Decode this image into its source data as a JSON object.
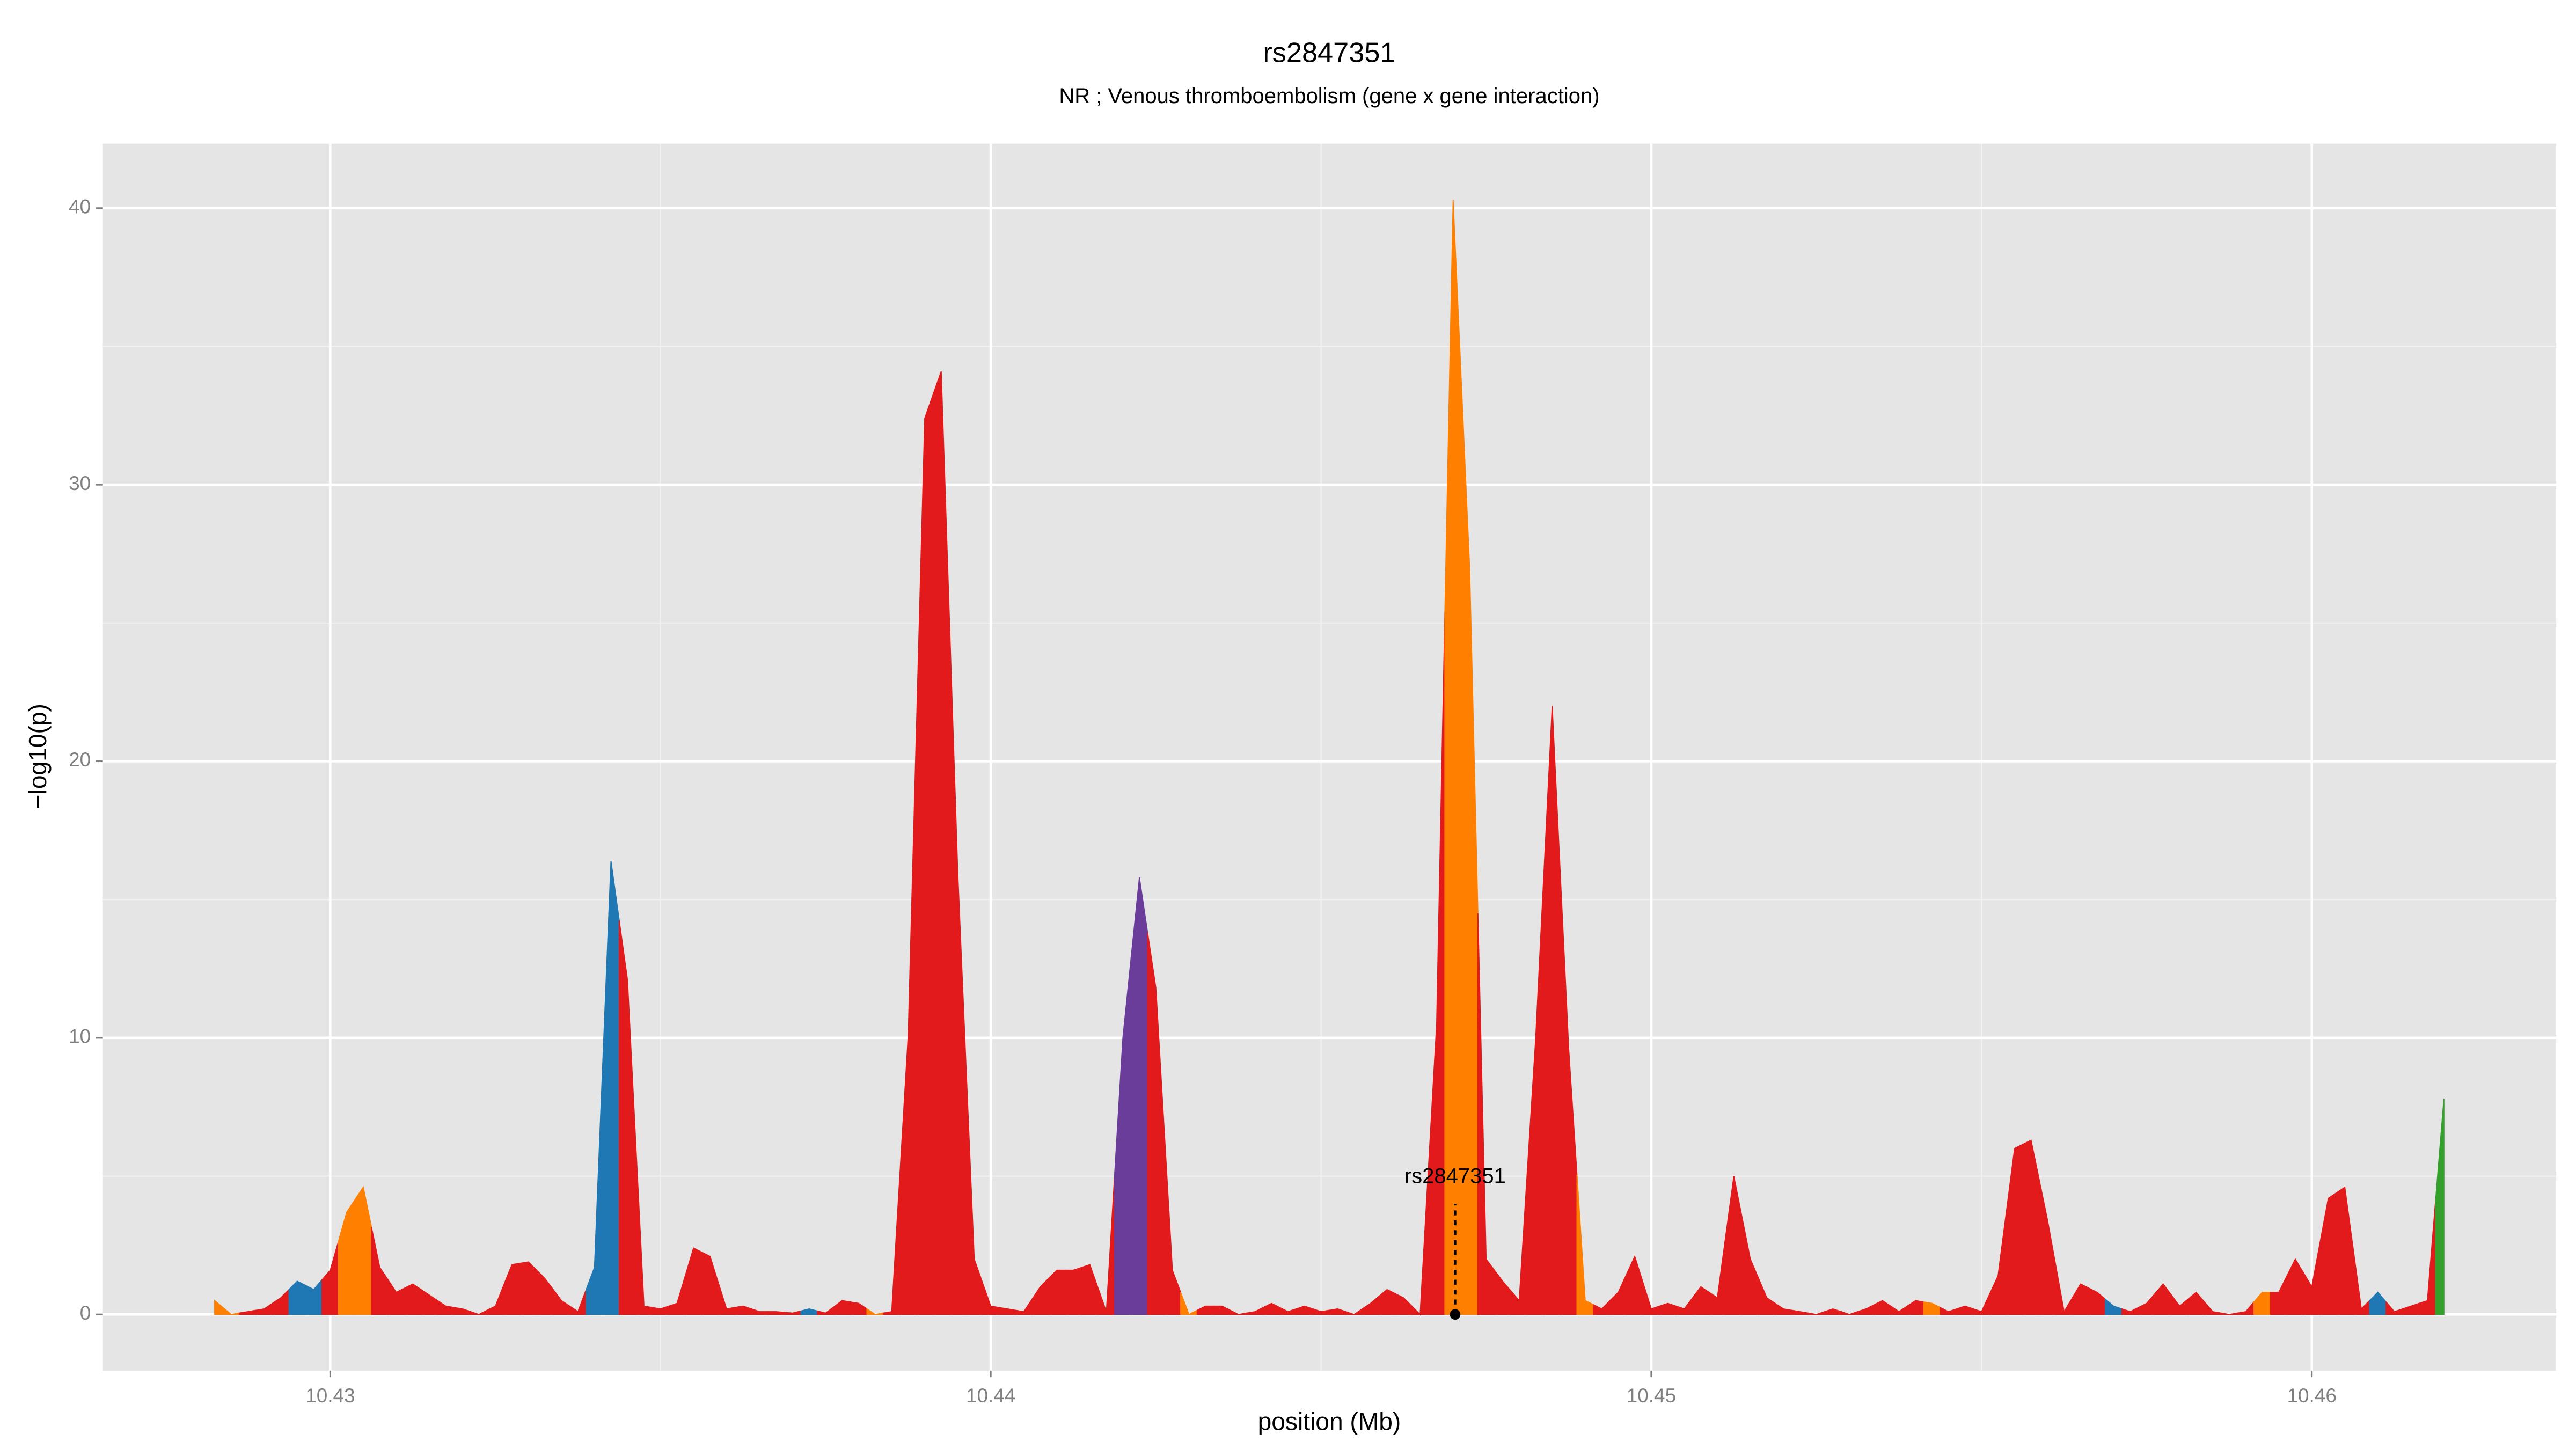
{
  "chart_data": {
    "type": "area",
    "title": "rs2847351",
    "subtitle": "NR ; Venous thromboembolism (gene x gene interaction)",
    "x_label": "position (Mb)",
    "y_label": "−log10(p)",
    "xlim": [
      10.42655,
      10.4637
    ],
    "ylim": [
      -2.03,
      42.33
    ],
    "xticks": [
      10.43,
      10.44,
      10.45,
      10.46
    ],
    "yticks": [
      0,
      10,
      20,
      30,
      40
    ],
    "grid": true,
    "x": [
      10.42825,
      10.4285,
      10.42875,
      10.429,
      10.42925,
      10.4295,
      10.42975,
      10.43,
      10.43025,
      10.4305,
      10.43075,
      10.431,
      10.43125,
      10.4315,
      10.43175,
      10.432,
      10.43225,
      10.4325,
      10.43275,
      10.433,
      10.43325,
      10.4335,
      10.43375,
      10.434,
      10.43425,
      10.4345,
      10.43475,
      10.435,
      10.43525,
      10.4355,
      10.43575,
      10.436,
      10.43625,
      10.4365,
      10.43675,
      10.437,
      10.43725,
      10.4375,
      10.43775,
      10.438,
      10.43825,
      10.4385,
      10.43875,
      10.439,
      10.43925,
      10.4395,
      10.43975,
      10.44,
      10.44025,
      10.4405,
      10.44075,
      10.441,
      10.44125,
      10.4415,
      10.44175,
      10.442,
      10.44225,
      10.4425,
      10.44275,
      10.443,
      10.44325,
      10.4435,
      10.44375,
      10.444,
      10.44425,
      10.4445,
      10.44475,
      10.445,
      10.44525,
      10.4455,
      10.44575,
      10.446,
      10.44625,
      10.4465,
      10.44675,
      10.447,
      10.44725,
      10.4475,
      10.44775,
      10.448,
      10.44825,
      10.4485,
      10.44875,
      10.449,
      10.44925,
      10.4495,
      10.44975,
      10.45,
      10.45025,
      10.4505,
      10.45075,
      10.451,
      10.45125,
      10.4515,
      10.45175,
      10.452,
      10.45225,
      10.4525,
      10.45275,
      10.453,
      10.45325,
      10.4535,
      10.45375,
      10.454,
      10.45425,
      10.4545,
      10.45475,
      10.455,
      10.45525,
      10.4555,
      10.45575,
      10.456,
      10.45625,
      10.4565,
      10.45675,
      10.457,
      10.45725,
      10.4575,
      10.45775,
      10.458,
      10.45825,
      10.4585,
      10.45875,
      10.459,
      10.45925,
      10.4595,
      10.45975,
      10.46,
      10.46025,
      10.4605,
      10.46075,
      10.461,
      10.46125,
      10.4615,
      10.46175,
      10.462
    ],
    "values": [
      0.5,
      0,
      0.1,
      0.2,
      0.6,
      1.2,
      0.9,
      1.6,
      3.7,
      4.6,
      1.7,
      0.8,
      1.1,
      0.7,
      0.3,
      0.2,
      0,
      0.3,
      1.8,
      1.9,
      1.3,
      0.5,
      0.1,
      1.7,
      16.4,
      12.1,
      0.3,
      0.2,
      0.4,
      2.4,
      2.1,
      0.2,
      0.3,
      0.1,
      0.1,
      0.05,
      0.2,
      0.05,
      0.5,
      0.4,
      0,
      0.1,
      10.1,
      32.4,
      34.1,
      16,
      2,
      0.3,
      0.2,
      0.1,
      1,
      1.6,
      1.6,
      1.8,
      0.1,
      10,
      15.8,
      11.8,
      1.6,
      0,
      0.3,
      0.3,
      0,
      0.1,
      0.4,
      0.1,
      0.3,
      0.1,
      0.2,
      0,
      0.4,
      0.9,
      0.6,
      0,
      10.5,
      40.3,
      27,
      2,
      1.2,
      0.5,
      10,
      22,
      9.6,
      0.5,
      0.2,
      0.8,
      2.1,
      0.2,
      0.4,
      0.2,
      1,
      0.6,
      5,
      2,
      0.6,
      0.2,
      0.1,
      0,
      0.2,
      0,
      0.2,
      0.5,
      0.1,
      0.5,
      0.4,
      0.1,
      0.3,
      0.1,
      1.4,
      6,
      6.3,
      3.4,
      0.1,
      1.1,
      0.8,
      0.3,
      0.1,
      0.4,
      1.1,
      0.3,
      0.8,
      0.1,
      0,
      0.1,
      0.8,
      0.8,
      2,
      1,
      4.2,
      4.6,
      0.2,
      0.8,
      0.1,
      0.3,
      0.5,
      7.8
    ],
    "colors": [
      "#ff7f00",
      "#ff7f00",
      "#e31a1c",
      "#e31a1c",
      "#e31a1c",
      "#1f78b4",
      "#1f78b4",
      "#e31a1c",
      "#ff7f00",
      "#ff7f00",
      "#e31a1c",
      "#e31a1c",
      "#e31a1c",
      "#e31a1c",
      "#e31a1c",
      "#e31a1c",
      "#e31a1c",
      "#e31a1c",
      "#e31a1c",
      "#e31a1c",
      "#e31a1c",
      "#e31a1c",
      "#e31a1c",
      "#1f78b4",
      "#1f78b4",
      "#e31a1c",
      "#e31a1c",
      "#e31a1c",
      "#e31a1c",
      "#e31a1c",
      "#e31a1c",
      "#e31a1c",
      "#e31a1c",
      "#e31a1c",
      "#e31a1c",
      "#e31a1c",
      "#1f78b4",
      "#e31a1c",
      "#e31a1c",
      "#e31a1c",
      "#ff7f00",
      "#e31a1c",
      "#e31a1c",
      "#e31a1c",
      "#e31a1c",
      "#e31a1c",
      "#e31a1c",
      "#e31a1c",
      "#e31a1c",
      "#e31a1c",
      "#e31a1c",
      "#e31a1c",
      "#e31a1c",
      "#e31a1c",
      "#e31a1c",
      "#6a3d9a",
      "#6a3d9a",
      "#e31a1c",
      "#e31a1c",
      "#ff7f00",
      "#e31a1c",
      "#e31a1c",
      "#e31a1c",
      "#e31a1c",
      "#e31a1c",
      "#e31a1c",
      "#e31a1c",
      "#e31a1c",
      "#e31a1c",
      "#e31a1c",
      "#e31a1c",
      "#e31a1c",
      "#e31a1c",
      "#e31a1c",
      "#e31a1c",
      "#ff7f00",
      "#ff7f00",
      "#e31a1c",
      "#e31a1c",
      "#e31a1c",
      "#e31a1c",
      "#e31a1c",
      "#e31a1c",
      "#ff7f00",
      "#e31a1c",
      "#e31a1c",
      "#e31a1c",
      "#e31a1c",
      "#e31a1c",
      "#e31a1c",
      "#e31a1c",
      "#e31a1c",
      "#e31a1c",
      "#e31a1c",
      "#e31a1c",
      "#e31a1c",
      "#e31a1c",
      "#e31a1c",
      "#e31a1c",
      "#e31a1c",
      "#e31a1c",
      "#e31a1c",
      "#e31a1c",
      "#e31a1c",
      "#ff7f00",
      "#e31a1c",
      "#e31a1c",
      "#e31a1c",
      "#e31a1c",
      "#e31a1c",
      "#e31a1c",
      "#e31a1c",
      "#e31a1c",
      "#e31a1c",
      "#e31a1c",
      "#1f78b4",
      "#e31a1c",
      "#e31a1c",
      "#e31a1c",
      "#e31a1c",
      "#e31a1c",
      "#e31a1c",
      "#e31a1c",
      "#e31a1c",
      "#ff7f00",
      "#e31a1c",
      "#e31a1c",
      "#e31a1c",
      "#e31a1c",
      "#e31a1c",
      "#e31a1c",
      "#1f78b4",
      "#e31a1c",
      "#e31a1c",
      "#e31a1c",
      "#33a02c"
    ],
    "annotation": {
      "text": "rs2847351",
      "x": 10.44703,
      "y": 0
    }
  }
}
